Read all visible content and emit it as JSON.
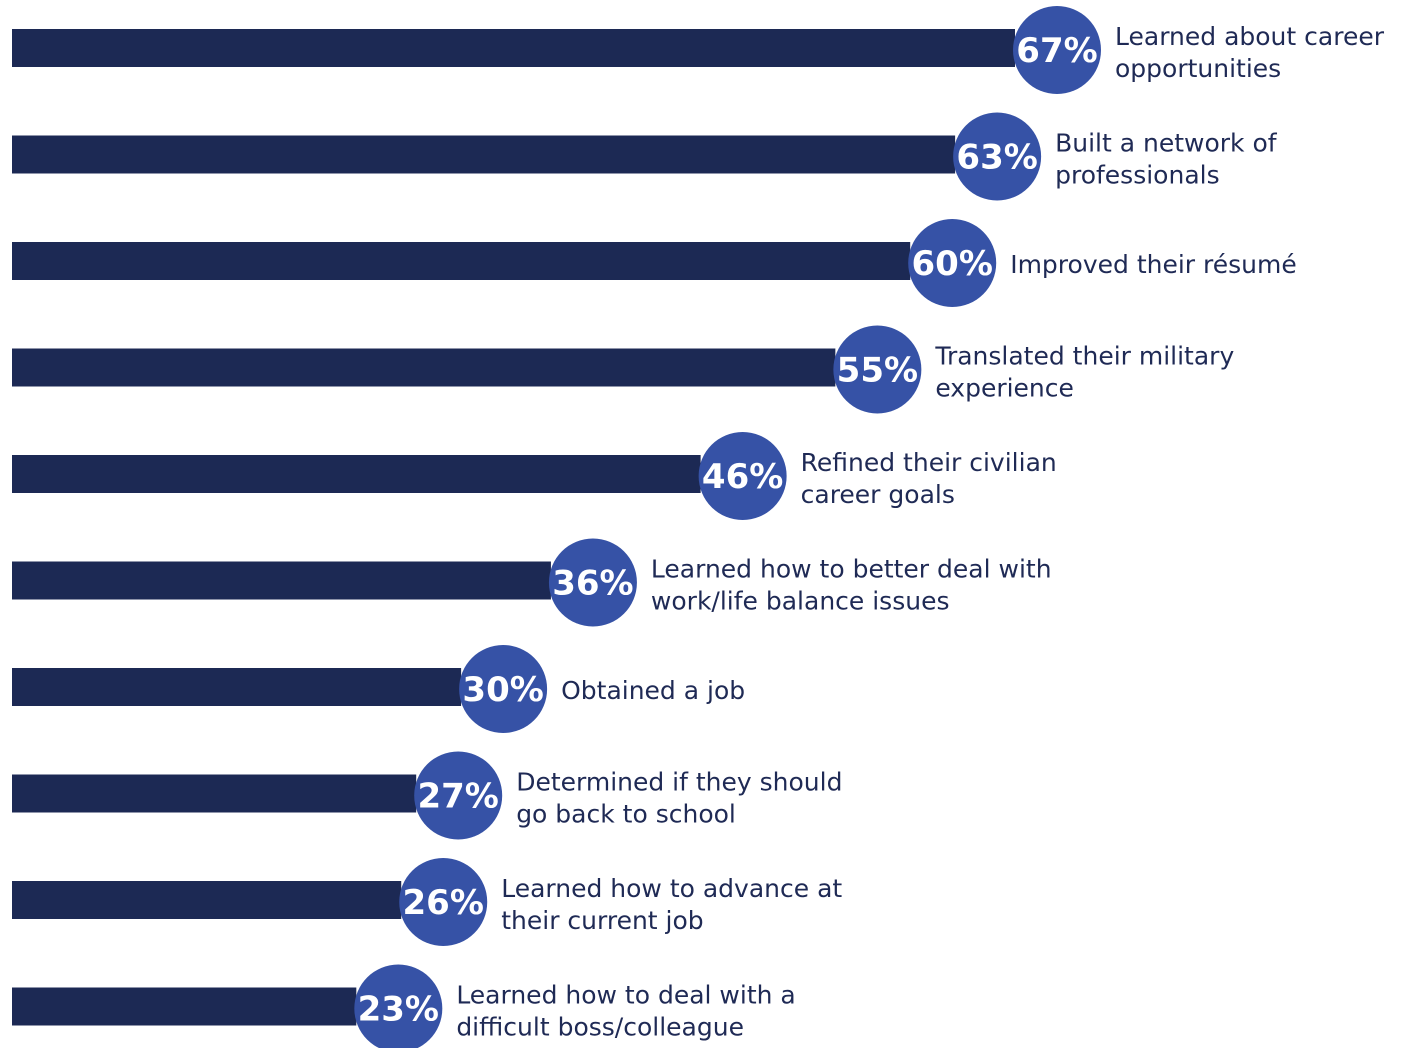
{
  "chart_data": {
    "type": "bar",
    "orientation": "horizontal",
    "bar_color": "#1c2954",
    "badge_color": "#3652a6",
    "text_color": "#1f2a55",
    "unit": "%",
    "grid": false,
    "legend": "none",
    "xlim": [
      0,
      67
    ],
    "categories": [
      [
        "Learned about career",
        "opportunities"
      ],
      [
        "Built a network of",
        "professionals"
      ],
      [
        "Improved their résumé"
      ],
      [
        "Translated their military",
        "experience"
      ],
      [
        "Refined their civilian",
        "career goals"
      ],
      [
        "Learned how to better deal with",
        "work/life balance issues"
      ],
      [
        "Obtained a job"
      ],
      [
        "Determined if they should",
        "go back to school"
      ],
      [
        "Learned how to advance at",
        "their current job"
      ],
      [
        "Learned how to deal with a",
        "difficult boss/colleague"
      ]
    ],
    "values": [
      67,
      63,
      60,
      55,
      46,
      36,
      30,
      27,
      26,
      23
    ],
    "data_labels": [
      "67%",
      "63%",
      "60%",
      "55%",
      "46%",
      "36%",
      "30%",
      "27%",
      "26%",
      "23%"
    ]
  }
}
